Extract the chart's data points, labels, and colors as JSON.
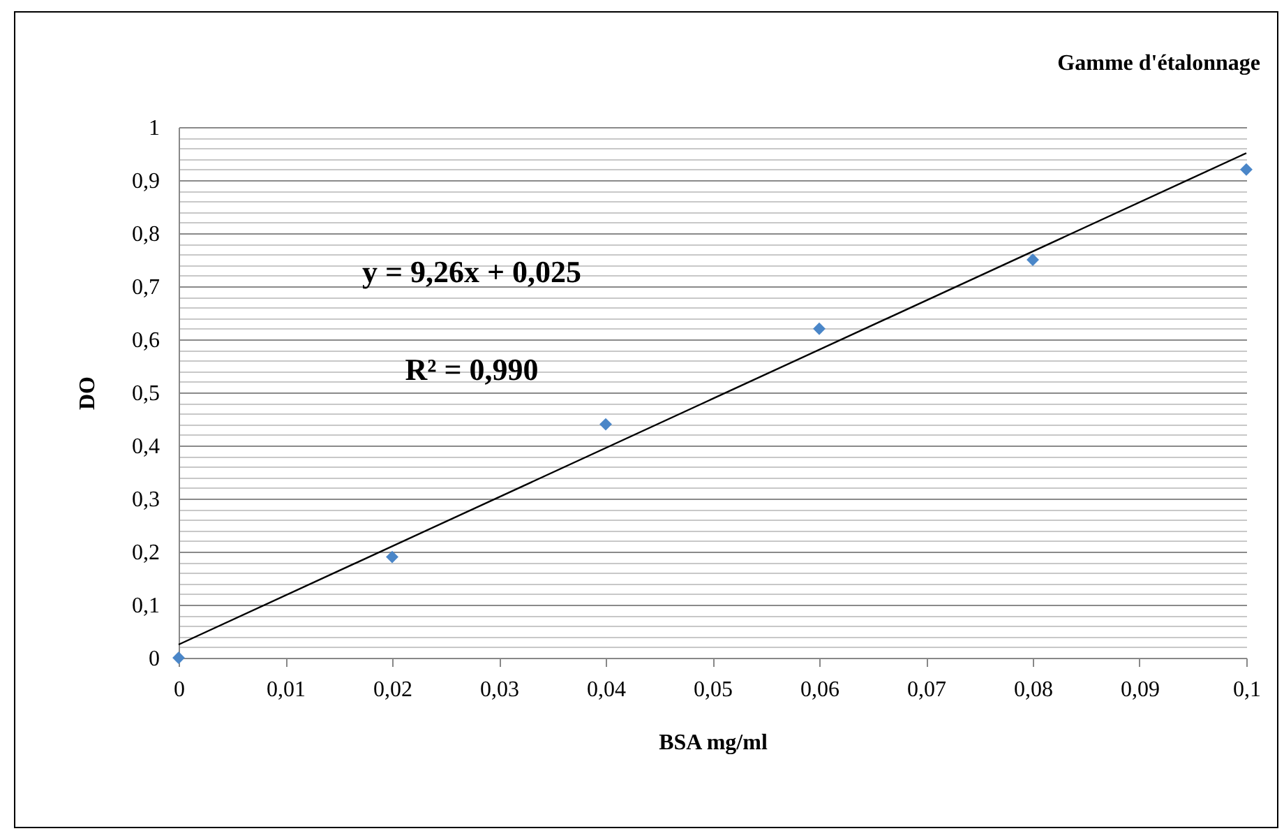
{
  "chart_data": {
    "type": "scatter",
    "title": "Gamme d'étalonnage",
    "xlabel": "BSA mg/ml",
    "ylabel": "DO",
    "annotations": [
      "y = 9,26x + 0,025",
      "R² = 0,990"
    ],
    "grid": "y",
    "xlim": [
      0,
      0.1
    ],
    "ylim": [
      0,
      1
    ],
    "xticks": [
      0,
      {
        "value": 0.01,
        "label": "0,01"
      },
      {
        "value": 0.02,
        "label": "0,02"
      },
      {
        "value": 0.03,
        "label": "0,03"
      },
      {
        "value": 0.04,
        "label": "0,04"
      },
      {
        "value": 0.05,
        "label": "0,05"
      },
      {
        "value": 0.06,
        "label": "0,06"
      },
      {
        "value": 0.07,
        "label": "0,07"
      },
      {
        "value": 0.08,
        "label": "0,08"
      },
      {
        "value": 0.09,
        "label": "0,09"
      },
      {
        "value": 0.1,
        "label": "0,1"
      }
    ],
    "yticks": [
      0,
      {
        "value": 0.02,
        "label": null
      },
      {
        "value": 0.04,
        "label": null
      },
      {
        "value": 0.06,
        "label": null
      },
      {
        "value": 0.08,
        "label": null
      },
      {
        "value": 0.1,
        "label": "0,1"
      },
      {
        "value": 0.12,
        "label": null
      },
      {
        "value": 0.14,
        "label": null
      },
      {
        "value": 0.16,
        "label": null
      },
      {
        "value": 0.18,
        "label": null
      },
      {
        "value": 0.2,
        "label": "0,2"
      },
      {
        "value": 0.22,
        "label": null
      },
      {
        "value": 0.24,
        "label": null
      },
      {
        "value": 0.26,
        "label": null
      },
      {
        "value": 0.28,
        "label": null
      },
      {
        "value": 0.3,
        "label": "0,3"
      },
      {
        "value": 0.32,
        "label": null
      },
      {
        "value": 0.34,
        "label": null
      },
      {
        "value": 0.36,
        "label": null
      },
      {
        "value": 0.38,
        "label": null
      },
      {
        "value": 0.4,
        "label": "0,4"
      },
      {
        "value": 0.42,
        "label": null
      },
      {
        "value": 0.44,
        "label": null
      },
      {
        "value": 0.46,
        "label": null
      },
      {
        "value": 0.48,
        "label": null
      },
      {
        "value": 0.5,
        "label": "0,5"
      },
      {
        "value": 0.52,
        "label": null
      },
      {
        "value": 0.54,
        "label": null
      },
      {
        "value": 0.56,
        "label": null
      },
      {
        "value": 0.58,
        "label": null
      },
      {
        "value": 0.6,
        "label": "0,6"
      },
      {
        "value": 0.62,
        "label": null
      },
      {
        "value": 0.64,
        "label": null
      },
      {
        "value": 0.66,
        "label": null
      },
      {
        "value": 0.68,
        "label": null
      },
      {
        "value": 0.7,
        "label": "0,7"
      },
      {
        "value": 0.72,
        "label": null
      },
      {
        "value": 0.74,
        "label": null
      },
      {
        "value": 0.76,
        "label": null
      },
      {
        "value": 0.78,
        "label": null
      },
      {
        "value": 0.8,
        "label": "0,8"
      },
      {
        "value": 0.82,
        "label": null
      },
      {
        "value": 0.84,
        "label": null
      },
      {
        "value": 0.86,
        "label": null
      },
      {
        "value": 0.88,
        "label": null
      },
      {
        "value": 0.9,
        "label": "0,9"
      },
      {
        "value": 0.92,
        "label": null
      },
      {
        "value": 0.94,
        "label": null
      },
      {
        "value": 0.96,
        "label": null
      },
      {
        "value": 0.98,
        "label": null
      },
      1
    ],
    "series": [
      {
        "marker": "diamond",
        "color": "#4a86c8",
        "x": [
          0,
          0.02,
          0.04,
          0.06,
          0.08,
          0.1
        ],
        "values": [
          0,
          0.19,
          0.44,
          0.62,
          0.75,
          0.92
        ]
      },
      {
        "type": "line",
        "color": "#000000",
        "x": [
          0,
          0.1
        ],
        "values": [
          0.025,
          0.951
        ]
      }
    ]
  }
}
